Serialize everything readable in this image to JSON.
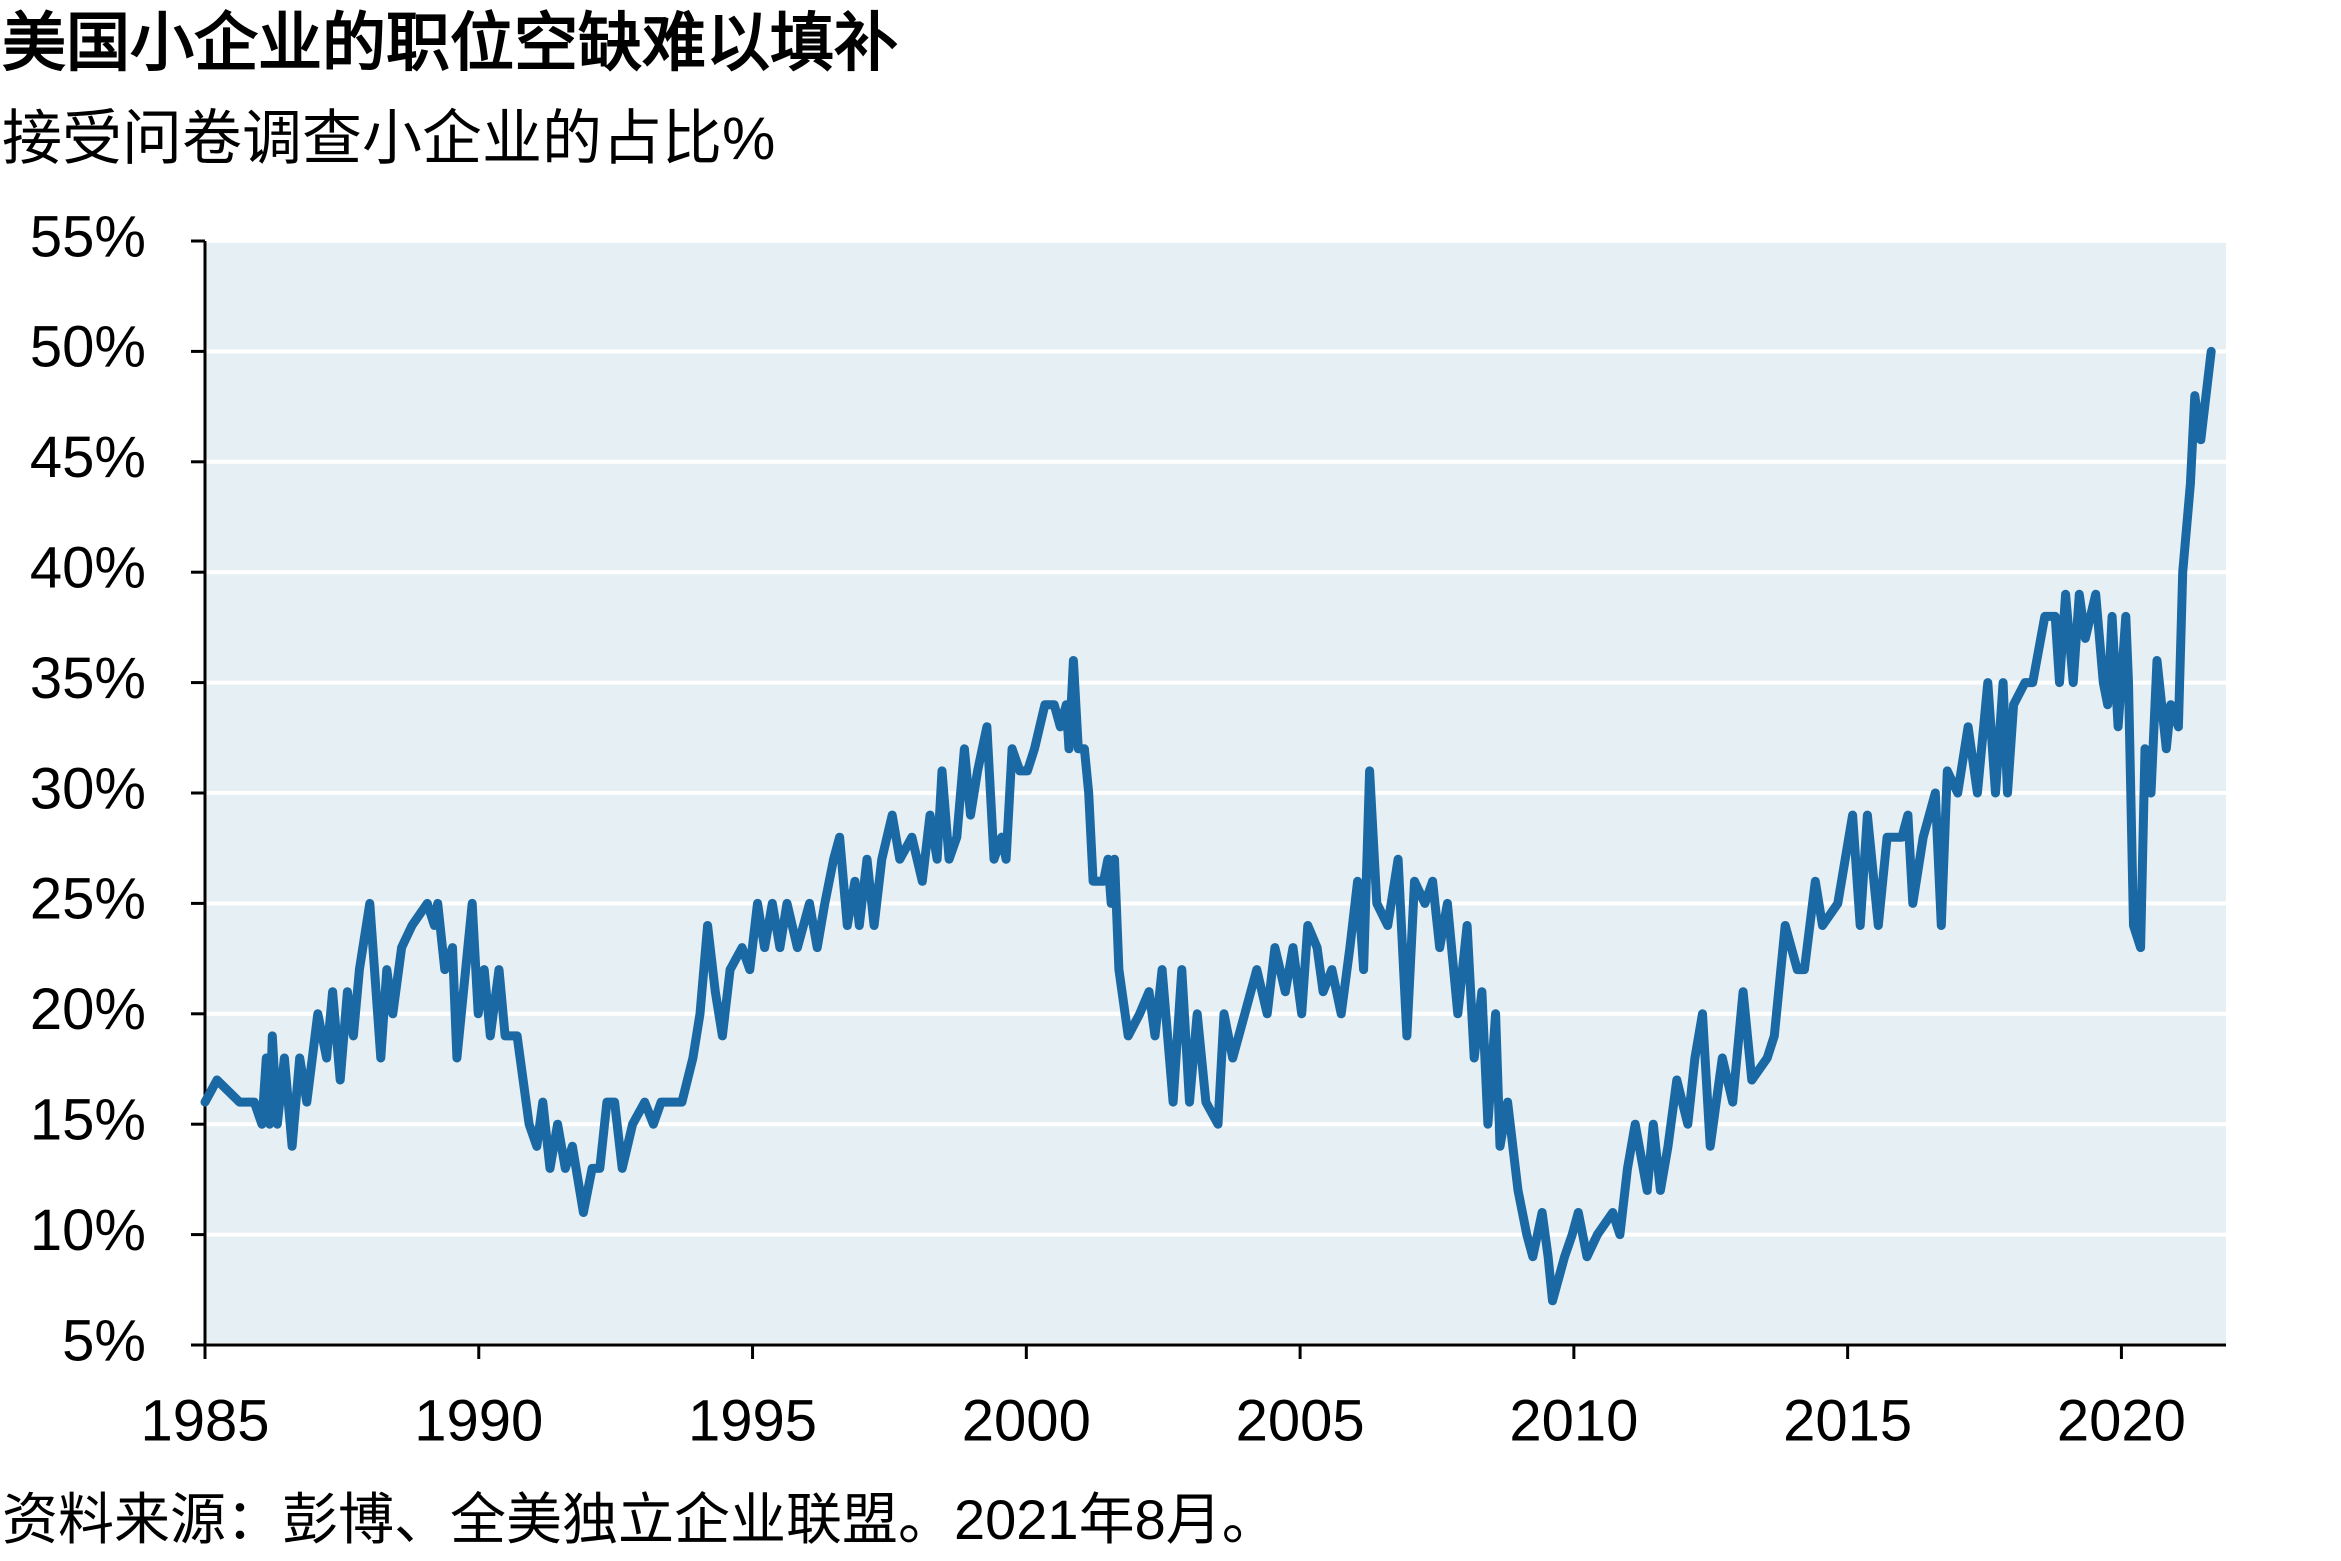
{
  "chart_data": {
    "type": "line",
    "title": "美国小企业的职位空缺难以填补",
    "subtitle": "接受问卷调查小企业的占比%",
    "source": "资料来源：彭博、全美独立企业联盟。2021年8月。",
    "x": [
      1985.0,
      1985.22,
      1985.63,
      1985.9,
      1986.04,
      1986.12,
      1986.18,
      1986.23,
      1986.32,
      1986.45,
      1986.59,
      1986.73,
      1986.86,
      1987.06,
      1987.22,
      1987.33,
      1987.47,
      1987.6,
      1987.71,
      1987.82,
      1988.01,
      1988.21,
      1988.32,
      1988.43,
      1988.59,
      1988.78,
      1989.06,
      1989.19,
      1989.25,
      1989.38,
      1989.52,
      1989.6,
      1989.88,
      1989.99,
      1990.1,
      1990.21,
      1990.37,
      1990.48,
      1990.7,
      1990.81,
      1990.92,
      1991.06,
      1991.17,
      1991.3,
      1991.44,
      1991.58,
      1991.71,
      1991.91,
      1992.07,
      1992.21,
      1992.34,
      1992.48,
      1992.62,
      1992.81,
      1993.03,
      1993.19,
      1993.33,
      1993.71,
      1993.91,
      1994.04,
      1994.18,
      1994.32,
      1994.45,
      1994.59,
      1994.81,
      1994.95,
      1995.09,
      1995.22,
      1995.36,
      1995.5,
      1995.63,
      1995.82,
      1996.04,
      1996.18,
      1996.32,
      1996.48,
      1996.59,
      1996.73,
      1996.87,
      1996.95,
      1997.09,
      1997.22,
      1997.36,
      1997.55,
      1997.69,
      1997.91,
      1998.1,
      1998.24,
      1998.37,
      1998.46,
      1998.59,
      1998.73,
      1998.87,
      1998.98,
      1999.11,
      1999.28,
      1999.41,
      1999.55,
      1999.63,
      1999.74,
      1999.88,
      2000.02,
      2000.15,
      2000.34,
      2000.51,
      2000.62,
      2000.73,
      2000.78,
      2000.86,
      2000.95,
      2001.06,
      2001.14,
      2001.22,
      2001.41,
      2001.49,
      2001.55,
      2001.61,
      2001.69,
      2001.86,
      2002.07,
      2002.24,
      2002.35,
      2002.48,
      2002.68,
      2002.84,
      2002.98,
      2003.12,
      2003.28,
      2003.5,
      2003.61,
      2003.77,
      2003.99,
      2004.21,
      2004.4,
      2004.54,
      2004.73,
      2004.87,
      2005.03,
      2005.14,
      2005.31,
      2005.42,
      2005.58,
      2005.75,
      2005.91,
      2006.05,
      2006.16,
      2006.27,
      2006.4,
      2006.6,
      2006.79,
      2006.95,
      2007.09,
      2007.28,
      2007.42,
      2007.55,
      2007.69,
      2007.88,
      2008.05,
      2008.18,
      2008.32,
      2008.43,
      2008.57,
      2008.65,
      2008.79,
      2008.98,
      2009.14,
      2009.25,
      2009.42,
      2009.53,
      2009.61,
      2009.83,
      2009.97,
      2010.08,
      2010.24,
      2010.43,
      2010.71,
      2010.84,
      2010.98,
      2011.12,
      2011.34,
      2011.45,
      2011.58,
      2011.72,
      2011.88,
      2012.08,
      2012.21,
      2012.35,
      2012.49,
      2012.71,
      2012.9,
      2013.09,
      2013.25,
      2013.53,
      2013.66,
      2013.86,
      2014.08,
      2014.21,
      2014.41,
      2014.54,
      2014.82,
      2015.09,
      2015.23,
      2015.36,
      2015.56,
      2015.72,
      2015.99,
      2016.1,
      2016.19,
      2016.38,
      2016.6,
      2016.71,
      2016.82,
      2017.01,
      2017.2,
      2017.37,
      2017.56,
      2017.7,
      2017.84,
      2017.92,
      2018.03,
      2018.24,
      2018.38,
      2018.6,
      2018.79,
      2018.87,
      2018.98,
      2019.12,
      2019.23,
      2019.34,
      2019.53,
      2019.67,
      2019.75,
      2019.83,
      2019.94,
      2020.08,
      2020.13,
      2020.22,
      2020.35,
      2020.43,
      2020.54,
      2020.65,
      2020.82,
      2020.9,
      2021.04,
      2021.12,
      2021.26,
      2021.34,
      2021.45,
      2021.64
    ],
    "series": [
      {
        "color": "#1a69a4",
        "values": [
          16,
          17,
          16,
          16,
          15,
          18,
          15,
          19,
          15,
          18,
          14,
          18,
          16,
          20,
          18,
          21,
          17,
          21,
          19,
          22,
          25,
          18,
          22,
          20,
          23,
          24,
          25,
          24,
          25,
          22,
          23,
          18,
          25,
          20,
          22,
          19,
          22,
          19,
          19,
          17,
          15,
          14,
          16,
          13,
          15,
          13,
          14,
          11,
          13,
          13,
          16,
          16,
          13,
          15,
          16,
          15,
          16,
          16,
          18,
          20,
          24,
          21,
          19,
          22,
          23,
          22,
          25,
          23,
          25,
          23,
          25,
          23,
          25,
          23,
          25,
          27,
          28,
          24,
          26,
          24,
          27,
          24,
          27,
          29,
          27,
          28,
          26,
          29,
          27,
          31,
          27,
          28,
          32,
          29,
          31,
          33,
          27,
          28,
          27,
          32,
          31,
          31,
          32,
          34,
          34,
          33,
          34,
          32,
          36,
          32,
          32,
          30,
          26,
          26,
          27,
          25,
          27,
          22,
          19,
          20,
          21,
          19,
          22,
          16,
          22,
          16,
          20,
          16,
          15,
          20,
          18,
          20,
          22,
          20,
          23,
          21,
          23,
          20,
          24,
          23,
          21,
          22,
          20,
          23,
          26,
          22,
          31,
          25,
          24,
          27,
          19,
          26,
          25,
          26,
          23,
          25,
          20,
          24,
          18,
          21,
          15,
          20,
          14,
          16,
          12,
          10,
          9,
          11,
          9,
          7,
          9,
          10,
          11,
          9,
          10,
          11,
          10,
          13,
          15,
          12,
          15,
          12,
          14,
          17,
          15,
          18,
          20,
          14,
          18,
          16,
          21,
          17,
          18,
          19,
          24,
          22,
          22,
          26,
          24,
          25,
          29,
          24,
          29,
          24,
          28,
          28,
          29,
          25,
          28,
          30,
          24,
          31,
          30,
          33,
          30,
          35,
          30,
          35,
          30,
          34,
          35,
          35,
          38,
          38,
          35,
          39,
          35,
          39,
          37,
          39,
          35,
          34,
          38,
          33,
          38,
          35,
          24,
          23,
          32,
          30,
          36,
          32,
          34,
          33,
          40,
          44,
          48,
          46,
          50
        ]
      }
    ],
    "xlim": [
      1985,
      2021.91
    ],
    "xticks": [
      1985,
      1990,
      1995,
      2000,
      2005,
      2010,
      2015,
      2020
    ],
    "ylim": [
      5,
      55
    ],
    "yticks": [
      {
        "value": 5,
        "label": "5%"
      },
      {
        "value": 10,
        "label": "10%"
      },
      {
        "value": 15,
        "label": "15%"
      },
      {
        "value": 20,
        "label": "20%"
      },
      {
        "value": 25,
        "label": "25%"
      },
      {
        "value": 30,
        "label": "30%"
      },
      {
        "value": 35,
        "label": "35%"
      },
      {
        "value": 40,
        "label": "40%"
      },
      {
        "value": 45,
        "label": "45%"
      },
      {
        "value": 50,
        "label": "50%"
      },
      {
        "value": 55,
        "label": "55%"
      }
    ],
    "grid": true
  }
}
